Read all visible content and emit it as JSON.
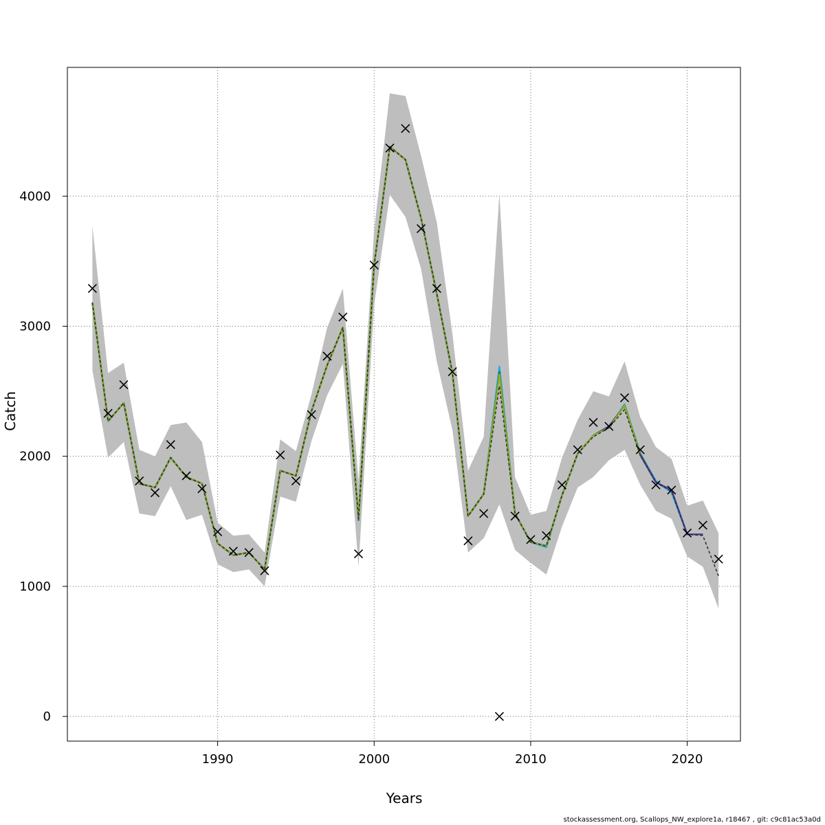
{
  "chart_data": {
    "type": "line",
    "xlabel": "Years",
    "ylabel": "Catch",
    "xlim": [
      1980.4,
      2023.4
    ],
    "ylim": [
      -190,
      4990
    ],
    "x_ticks": [
      1990,
      2000,
      2010,
      2020
    ],
    "y_ticks": [
      0,
      1000,
      2000,
      3000,
      4000
    ],
    "grid": true,
    "legend": "none",
    "observed": {
      "marker": "x",
      "x": [
        1982,
        1983,
        1984,
        1985,
        1986,
        1987,
        1988,
        1989,
        1990,
        1991,
        1992,
        1993,
        1994,
        1995,
        1996,
        1997,
        1998,
        1999,
        2000,
        2001,
        2002,
        2003,
        2004,
        2005,
        2006,
        2007,
        2008,
        2009,
        2010,
        2011,
        2012,
        2013,
        2014,
        2015,
        2016,
        2017,
        2018,
        2019,
        2020,
        2021,
        2022
      ],
      "y": [
        3290,
        2330,
        2550,
        1810,
        1720,
        2090,
        1850,
        1750,
        1420,
        1270,
        1260,
        1120,
        2010,
        1810,
        2320,
        2770,
        3070,
        1250,
        3470,
        4370,
        4520,
        3750,
        3290,
        2650,
        1350,
        1560,
        0,
        1540,
        1360,
        1390,
        1780,
        2050,
        2260,
        2230,
        2450,
        2050,
        1780,
        1740,
        1410,
        1470,
        1210
      ]
    },
    "ci_band": {
      "x": [
        1982,
        1983,
        1984,
        1985,
        1986,
        1987,
        1988,
        1989,
        1990,
        1991,
        1992,
        1993,
        1994,
        1995,
        1996,
        1997,
        1998,
        1999,
        2000,
        2001,
        2002,
        2003,
        2004,
        2005,
        2006,
        2007,
        2008,
        2009,
        2010,
        2011,
        2012,
        2013,
        2014,
        2015,
        2016,
        2017,
        2018,
        2019,
        2020,
        2021,
        2022
      ],
      "lower": [
        2660,
        1990,
        2110,
        1560,
        1540,
        1770,
        1510,
        1550,
        1170,
        1110,
        1130,
        1000,
        1690,
        1650,
        2120,
        2470,
        2710,
        1150,
        3160,
        4010,
        3840,
        3440,
        2730,
        2200,
        1260,
        1370,
        1630,
        1280,
        1180,
        1090,
        1460,
        1760,
        1840,
        1970,
        2050,
        1780,
        1580,
        1520,
        1230,
        1150,
        830
      ],
      "upper": [
        3770,
        2640,
        2720,
        2050,
        2000,
        2240,
        2260,
        2110,
        1490,
        1390,
        1400,
        1260,
        2130,
        2040,
        2480,
        2990,
        3290,
        1810,
        3740,
        4790,
        4770,
        4310,
        3800,
        2940,
        1890,
        2150,
        4020,
        1840,
        1550,
        1580,
        1990,
        2280,
        2500,
        2460,
        2730,
        2300,
        2070,
        1980,
        1620,
        1660,
        1410
      ]
    },
    "series": [
      {
        "color": "#0b5aa0",
        "y": [
          3180,
          2270,
          2410,
          1790,
          1760,
          1990,
          1840,
          1790,
          1330,
          1240,
          1260,
          1130,
          1890,
          1850,
          2350,
          2700,
          2990,
          1510,
          3470,
          4380,
          4280,
          3830,
          3250,
          2640,
          1540,
          1710,
          2640,
          1560,
          1340,
          1310,
          1700,
          2020,
          2160,
          2230,
          2390,
          2010,
          1800,
          1730,
          1400,
          1400,
          null
        ]
      },
      {
        "color": "#1ab0e0",
        "y": [
          3180,
          2270,
          2410,
          1790,
          1760,
          1990,
          1840,
          1790,
          1330,
          1240,
          1260,
          1130,
          1890,
          1850,
          2350,
          2700,
          2990,
          1520,
          3470,
          4380,
          4280,
          3830,
          3250,
          2640,
          1540,
          1710,
          2690,
          1560,
          1340,
          1300,
          1700,
          2020,
          2160,
          2220,
          2400,
          2020,
          1810,
          1720,
          1400,
          1400,
          null
        ]
      },
      {
        "color": "#1a8a5a",
        "y": [
          3180,
          2270,
          2410,
          1790,
          1760,
          1990,
          1840,
          1790,
          1330,
          1240,
          1260,
          1130,
          1890,
          1850,
          2350,
          2700,
          2990,
          1520,
          3470,
          4380,
          4280,
          3830,
          3250,
          2640,
          1540,
          1710,
          2650,
          1560,
          1340,
          1310,
          1700,
          2020,
          2160,
          2230,
          2390,
          2020,
          1800,
          null,
          null,
          null,
          null
        ]
      },
      {
        "color": "#4a3aa0",
        "y": [
          3180,
          2270,
          2410,
          1790,
          1760,
          1990,
          1840,
          1790,
          1330,
          1240,
          1260,
          1130,
          1890,
          1850,
          2350,
          2700,
          2990,
          1520,
          3470,
          4380,
          4280,
          3830,
          3250,
          2640,
          1540,
          1710,
          2640,
          1560,
          1340,
          1310,
          1700,
          2020,
          2160,
          2230,
          2390,
          2010,
          1800,
          1740,
          1400,
          1400,
          null
        ]
      },
      {
        "color": "#8ab020",
        "y": [
          3180,
          2270,
          2410,
          1790,
          1760,
          1990,
          1840,
          1790,
          1330,
          1240,
          1260,
          1130,
          1890,
          1850,
          2350,
          2700,
          2990,
          1520,
          3470,
          4380,
          4280,
          3830,
          3250,
          2640,
          1540,
          1710,
          2630,
          1560,
          1340,
          1310,
          1700,
          2020,
          2160,
          2220,
          2390,
          2010,
          null,
          null,
          null,
          null,
          null
        ]
      },
      {
        "color": "#333333",
        "dashed": true,
        "y": [
          3180,
          2270,
          2410,
          1790,
          1760,
          1990,
          1840,
          1790,
          1330,
          1240,
          1260,
          1130,
          1890,
          1850,
          2350,
          2700,
          2990,
          1520,
          3470,
          4380,
          4280,
          3830,
          3250,
          2640,
          1540,
          1710,
          2540,
          1560,
          1340,
          1310,
          1700,
          2020,
          2150,
          2220,
          2360,
          2010,
          1800,
          1730,
          1400,
          1390,
          1080
        ]
      }
    ]
  },
  "footer_text": "stockassessment.org, Scallops_NW_explore1a, r18467 , git: c9c81ac53a0d"
}
